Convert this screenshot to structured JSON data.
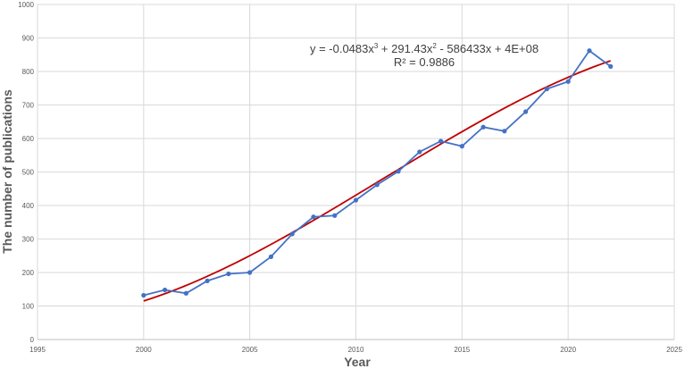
{
  "chart_data": {
    "type": "scatter",
    "xlabel": "Year",
    "ylabel": "The number of publications",
    "xlim": [
      1995,
      2025
    ],
    "ylim": [
      0,
      1000
    ],
    "x_ticks": [
      "1995",
      "2000",
      "2005",
      "2010",
      "2015",
      "2020",
      "2025"
    ],
    "y_ticks": [
      "0",
      "100",
      "200",
      "300",
      "400",
      "500",
      "600",
      "700",
      "800",
      "900",
      "1000"
    ],
    "grid": true,
    "colors": {
      "series": "#4472C4",
      "trendline": "#C00000",
      "grid": "#D9D9D9"
    },
    "series": [
      {
        "x": [
          2000,
          2001,
          2002,
          2003,
          2004,
          2005,
          2006,
          2007,
          2008,
          2009,
          2010,
          2011,
          2012,
          2013,
          2014,
          2015,
          2016,
          2017,
          2018,
          2019,
          2020,
          2021,
          2022
        ],
        "values": [
          132,
          148,
          138,
          175,
          196,
          200,
          247,
          315,
          366,
          370,
          416,
          462,
          502,
          560,
          592,
          577,
          634,
          622,
          680,
          748,
          770,
          862,
          815
        ]
      }
    ],
    "trendline": {
      "type": "polynomial-3",
      "x_range": [
        2000,
        2022
      ],
      "y_start": 115,
      "y_end": 832,
      "equation": {
        "prefix": "y = -0.0483x",
        "sup1": "3",
        "mid1": " + 291.43x",
        "sup2": "2",
        "suffix": " - 586433x + 4E+08"
      },
      "r_squared": "R² = 0.9886"
    }
  }
}
